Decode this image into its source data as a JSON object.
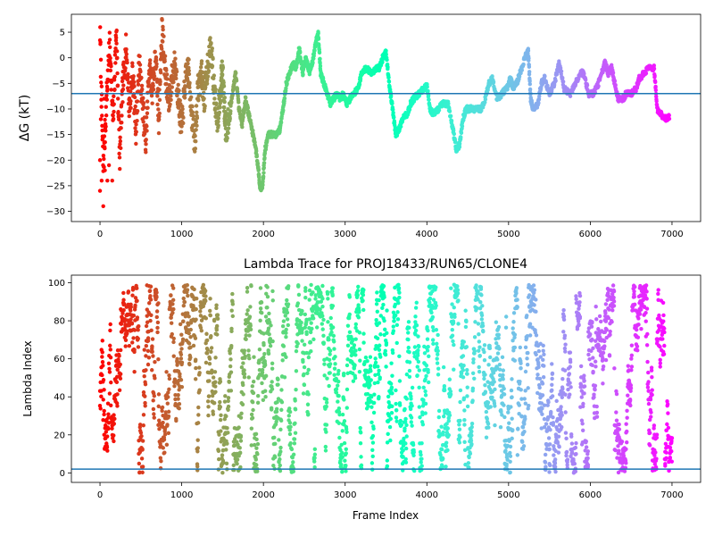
{
  "chart_data": [
    {
      "type": "scatter",
      "title": "",
      "xlabel": "",
      "ylabel": "ΔG (kT)",
      "xlim": [
        -350,
        7350
      ],
      "ylim": [
        -32,
        8.5
      ],
      "x_ticks": [
        "0",
        "1000",
        "2000",
        "3000",
        "4000",
        "5000",
        "6000",
        "7000"
      ],
      "y_ticks": [
        "5",
        "0",
        "−5",
        "−10",
        "−15",
        "−20",
        "−25",
        "−30"
      ],
      "colormap": "rainbow (red→violet along frame index)",
      "hline": {
        "y": -7,
        "color": "#1f77b4"
      },
      "trace": [
        [
          0,
          5
        ],
        [
          40,
          -22
        ],
        [
          80,
          -8
        ],
        [
          120,
          3
        ],
        [
          160,
          -13
        ],
        [
          200,
          6
        ],
        [
          240,
          -20
        ],
        [
          280,
          -5
        ],
        [
          320,
          2
        ],
        [
          360,
          -10
        ],
        [
          400,
          -3
        ],
        [
          440,
          -14
        ],
        [
          480,
          -1
        ],
        [
          520,
          -9
        ],
        [
          560,
          -17
        ],
        [
          600,
          -2
        ],
        [
          640,
          -6
        ],
        [
          680,
          0
        ],
        [
          720,
          -12
        ],
        [
          760,
          6
        ],
        [
          800,
          -3
        ],
        [
          840,
          -9
        ],
        [
          880,
          -4
        ],
        [
          920,
          -1
        ],
        [
          960,
          -8
        ],
        [
          1000,
          -14
        ],
        [
          1040,
          -5
        ],
        [
          1080,
          -2
        ],
        [
          1120,
          -10
        ],
        [
          1160,
          -17
        ],
        [
          1200,
          -6
        ],
        [
          1240,
          -3
        ],
        [
          1280,
          -8
        ],
        [
          1320,
          -1
        ],
        [
          1360,
          2
        ],
        [
          1400,
          -7
        ],
        [
          1440,
          -12
        ],
        [
          1480,
          -5
        ],
        [
          1500,
          -3
        ],
        [
          1520,
          -9
        ],
        [
          1540,
          -14
        ],
        [
          1580,
          -12
        ],
        [
          1620,
          -7
        ],
        [
          1660,
          -3
        ],
        [
          1700,
          -10
        ],
        [
          1740,
          -13
        ],
        [
          1780,
          -8
        ],
        [
          1820,
          -11
        ],
        [
          1860,
          -14
        ],
        [
          1900,
          -17
        ],
        [
          1940,
          -22
        ],
        [
          1960,
          -25.5
        ],
        [
          1990,
          -25
        ],
        [
          2020,
          -18
        ],
        [
          2060,
          -15
        ],
        [
          2100,
          -15
        ],
        [
          2160,
          -15
        ],
        [
          2200,
          -14
        ],
        [
          2240,
          -10
        ],
        [
          2280,
          -5
        ],
        [
          2320,
          -3
        ],
        [
          2360,
          -1
        ],
        [
          2400,
          -2
        ],
        [
          2440,
          2
        ],
        [
          2480,
          -3
        ],
        [
          2520,
          0
        ],
        [
          2560,
          -3
        ],
        [
          2600,
          -1
        ],
        [
          2640,
          3
        ],
        [
          2670,
          5
        ],
        [
          2700,
          -3
        ],
        [
          2740,
          -5
        ],
        [
          2780,
          -7
        ],
        [
          2820,
          -9
        ],
        [
          2860,
          -8
        ],
        [
          2900,
          -7
        ],
        [
          2940,
          -8
        ],
        [
          2980,
          -7
        ],
        [
          3020,
          -9
        ],
        [
          3060,
          -8
        ],
        [
          3100,
          -7
        ],
        [
          3160,
          -6
        ],
        [
          3200,
          -3
        ],
        [
          3260,
          -2
        ],
        [
          3320,
          -3
        ],
        [
          3380,
          -2
        ],
        [
          3420,
          -2
        ],
        [
          3460,
          0
        ],
        [
          3500,
          1
        ],
        [
          3540,
          -5
        ],
        [
          3580,
          -10
        ],
        [
          3620,
          -15
        ],
        [
          3660,
          -14
        ],
        [
          3700,
          -12
        ],
        [
          3760,
          -11
        ],
        [
          3800,
          -9
        ],
        [
          3840,
          -8
        ],
        [
          3900,
          -7
        ],
        [
          3960,
          -6
        ],
        [
          4000,
          -5.5
        ],
        [
          4040,
          -10
        ],
        [
          4080,
          -11
        ],
        [
          4140,
          -10
        ],
        [
          4200,
          -9
        ],
        [
          4260,
          -9
        ],
        [
          4320,
          -14
        ],
        [
          4360,
          -18
        ],
        [
          4400,
          -17
        ],
        [
          4440,
          -12
        ],
        [
          4480,
          -10
        ],
        [
          4540,
          -10
        ],
        [
          4600,
          -10
        ],
        [
          4660,
          -10
        ],
        [
          4700,
          -9
        ],
        [
          4760,
          -5
        ],
        [
          4800,
          -4
        ],
        [
          4860,
          -8
        ],
        [
          4920,
          -7
        ],
        [
          4980,
          -6
        ],
        [
          5020,
          -4
        ],
        [
          5060,
          -6
        ],
        [
          5100,
          -5
        ],
        [
          5140,
          -3
        ],
        [
          5200,
          0
        ],
        [
          5240,
          1.5
        ],
        [
          5270,
          -8
        ],
        [
          5300,
          -10
        ],
        [
          5360,
          -9
        ],
        [
          5400,
          -5
        ],
        [
          5440,
          -4
        ],
        [
          5500,
          -7
        ],
        [
          5560,
          -5
        ],
        [
          5620,
          -1
        ],
        [
          5680,
          -6
        ],
        [
          5760,
          -7
        ],
        [
          5820,
          -5
        ],
        [
          5880,
          -3
        ],
        [
          5920,
          -3
        ],
        [
          5980,
          -7
        ],
        [
          6040,
          -7
        ],
        [
          6100,
          -5
        ],
        [
          6160,
          -2
        ],
        [
          6180,
          -1
        ],
        [
          6220,
          -3
        ],
        [
          6260,
          -2
        ],
        [
          6300,
          -5
        ],
        [
          6340,
          -8
        ],
        [
          6400,
          -8
        ],
        [
          6440,
          -7
        ],
        [
          6500,
          -7
        ],
        [
          6560,
          -6
        ],
        [
          6600,
          -4
        ],
        [
          6660,
          -3
        ],
        [
          6720,
          -2
        ],
        [
          6780,
          -2
        ],
        [
          6820,
          -10
        ],
        [
          6860,
          -11
        ],
        [
          6920,
          -12
        ],
        [
          6970,
          -11.5
        ]
      ]
    },
    {
      "type": "scatter",
      "title": "Lambda Trace for PROJ18433/RUN65/CLONE4",
      "xlabel": "Frame Index",
      "ylabel": "Lambda Index",
      "xlim": [
        -350,
        7350
      ],
      "ylim": [
        -5,
        104
      ],
      "x_ticks": [
        "0",
        "1000",
        "2000",
        "3000",
        "4000",
        "5000",
        "6000",
        "7000"
      ],
      "y_ticks": [
        "0",
        "20",
        "40",
        "60",
        "80",
        "100"
      ],
      "colormap": "rainbow (red→violet along frame index)",
      "hline": {
        "y": 2,
        "color": "#1f77b4"
      },
      "n_points": 3000
    }
  ]
}
